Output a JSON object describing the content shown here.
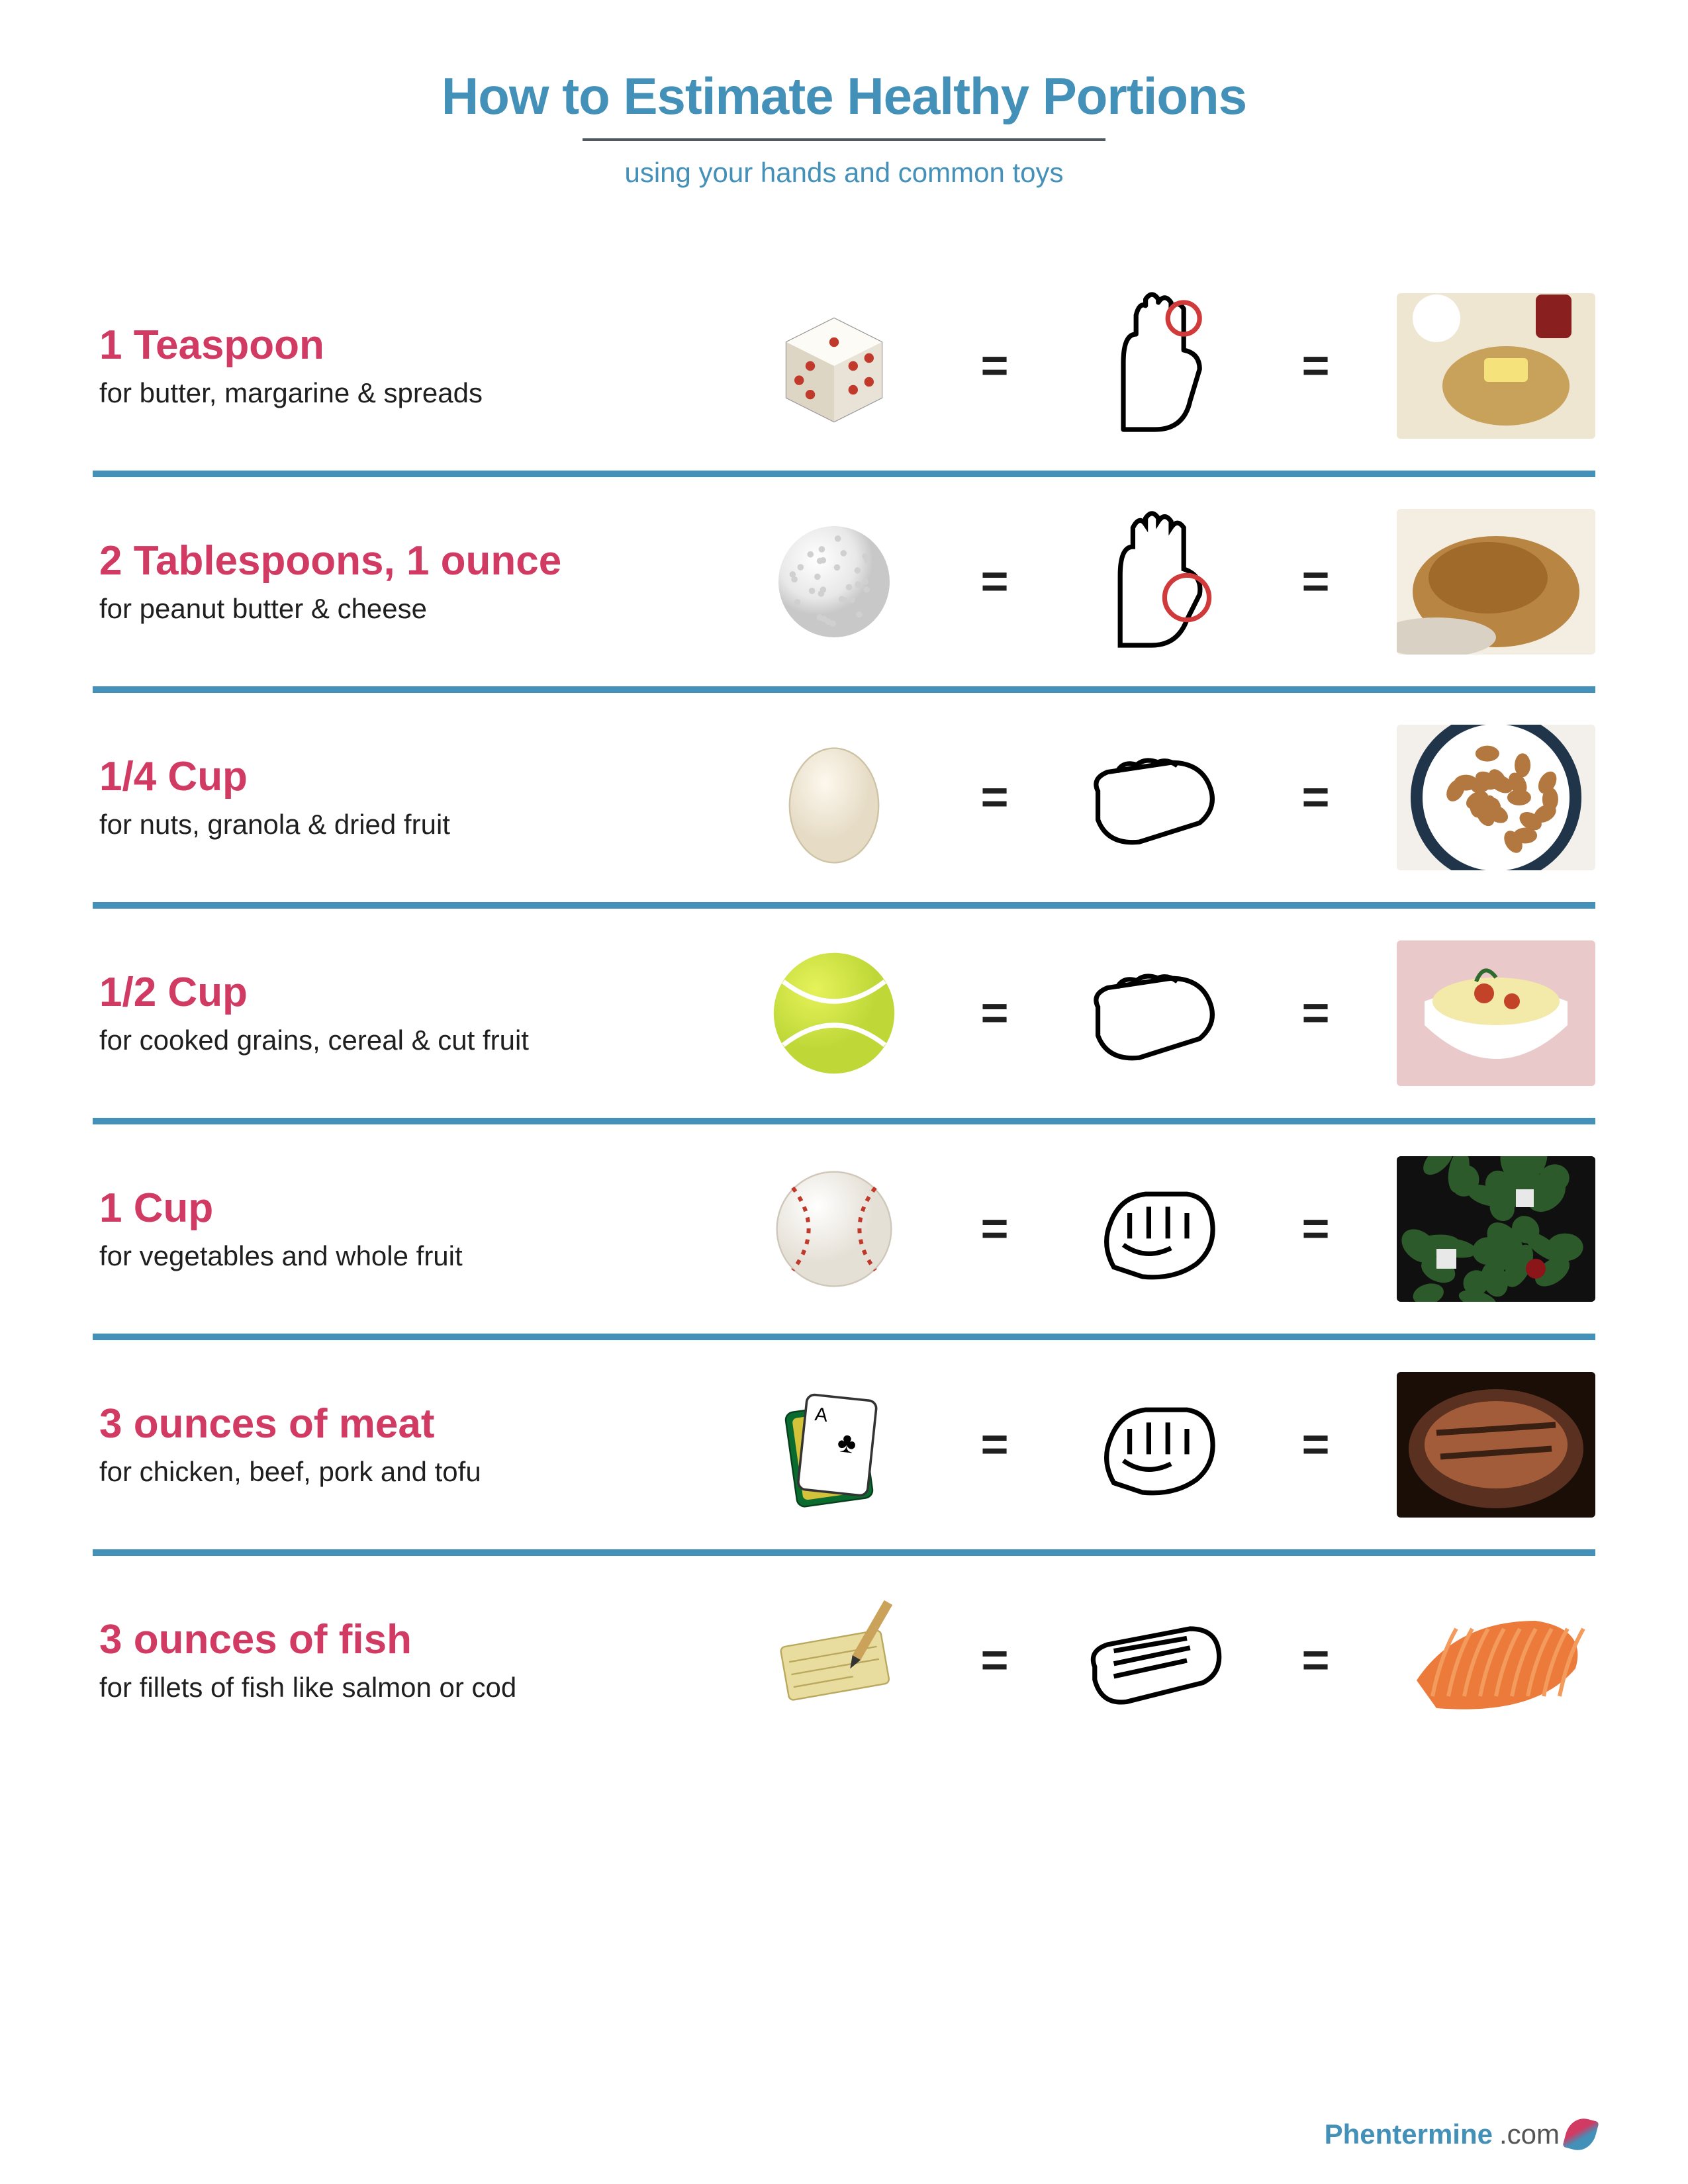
{
  "title": "How to Estimate Healthy Portions",
  "subtitle": "using your hands and common toys",
  "colors": {
    "title": "#4390b8",
    "subtitle": "#4390b8",
    "measure": "#d13a63",
    "desc": "#1f1f1f",
    "divider": "#4390b8",
    "equals": "#1f1f1f",
    "bg": "#ffffff"
  },
  "fonts": {
    "title_size": 78,
    "title_weight": 800,
    "subtitle_size": 42,
    "measure_size": 62,
    "measure_weight": 800,
    "desc_size": 42
  },
  "rows": [
    {
      "measure": "1 Teaspoon",
      "desc": "for butter, margarine & spreads",
      "toy": "dice",
      "hand": "fingertip-circle",
      "food": "butter-bread",
      "food_colors": [
        "#efe6d2",
        "#c8a15a",
        "#7a4e1a"
      ]
    },
    {
      "measure": "2 Tablespoons, 1 ounce",
      "desc": "for peanut butter & cheese",
      "toy": "golf-ball",
      "hand": "thumb-circle",
      "food": "peanut-butter",
      "food_colors": [
        "#b88542",
        "#a06a2b"
      ]
    },
    {
      "measure": "1/4 Cup",
      "desc": "for nuts, granola & dried fruit",
      "toy": "egg",
      "hand": "cupped-hand",
      "food": "almonds-bowl",
      "food_colors": [
        "#b37740",
        "#20344a",
        "#f3f0eb"
      ]
    },
    {
      "measure": "1/2 Cup",
      "desc": "for cooked grains, cereal & cut fruit",
      "toy": "tennis-ball",
      "hand": "cupped-hand",
      "food": "pasta-bowl",
      "food_colors": [
        "#f3e9a8",
        "#c24328",
        "#e7e2dc"
      ]
    },
    {
      "measure": "1 Cup",
      "desc": "for vegetables and whole fruit",
      "toy": "baseball",
      "hand": "fist",
      "food": "salad",
      "food_colors": [
        "#2d5a2a",
        "#e8e8e8",
        "#8a161a"
      ]
    },
    {
      "measure": "3 ounces of meat",
      "desc": "for chicken, beef, pork and tofu",
      "toy": "card-deck",
      "hand": "fist",
      "food": "roast-meat",
      "food_colors": [
        "#5a3120",
        "#a25c39",
        "#1a0e07"
      ]
    },
    {
      "measure": "3 ounces of fish",
      "desc": "for fillets of fish like salmon or cod",
      "toy": "checkbook",
      "hand": "flat-hand",
      "food": "salmon-fillet",
      "food_colors": [
        "#ec7a3a",
        "#f29b5d"
      ]
    }
  ],
  "footer": {
    "brand_a": "Phentermine",
    "brand_b": ".com"
  }
}
